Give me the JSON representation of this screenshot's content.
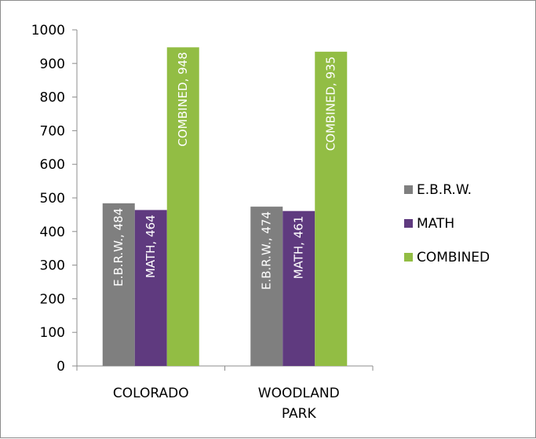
{
  "chart_data": {
    "type": "bar",
    "categories": [
      "COLORADO",
      "WOODLAND PARK"
    ],
    "category_lines": [
      [
        "COLORADO"
      ],
      [
        "WOODLAND",
        "PARK"
      ]
    ],
    "series": [
      {
        "name": "E.B.R.W.",
        "values": [
          484,
          474
        ],
        "color": "#7f7f7f"
      },
      {
        "name": "MATH",
        "values": [
          464,
          461
        ],
        "color": "#5f3a7f"
      },
      {
        "name": "COMBINED",
        "values": [
          948,
          935
        ],
        "color": "#92bd44"
      }
    ],
    "ylim": [
      0,
      1000
    ],
    "yticks": [
      0,
      100,
      200,
      300,
      400,
      500,
      600,
      700,
      800,
      900,
      1000
    ],
    "data_labels": true,
    "grid": false,
    "legend_position": "right"
  }
}
